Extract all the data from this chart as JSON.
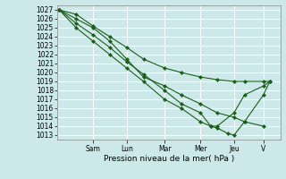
{
  "xlabel": "Pression niveau de la mer( hPa )",
  "bg_color": "#cde8e8",
  "grid_color": "#ffffff",
  "line_color": "#1a5e1a",
  "marker_color": "#1a5e1a",
  "ylim": [
    1012.5,
    1027.5
  ],
  "yticks": [
    1013,
    1014,
    1015,
    1016,
    1017,
    1018,
    1019,
    1020,
    1021,
    1022,
    1023,
    1024,
    1025,
    1026,
    1027
  ],
  "day_labels": [
    "Sam",
    "Lun",
    "Mar",
    "Mer",
    "Jeu",
    "V"
  ],
  "day_x": [
    0.16,
    0.32,
    0.5,
    0.67,
    0.83,
    0.97
  ],
  "lines": [
    {
      "x": [
        0.0,
        0.08,
        0.16,
        0.24,
        0.32,
        0.4,
        0.5,
        0.58,
        0.67,
        0.75,
        0.83,
        0.88,
        0.97,
        1.0
      ],
      "y": [
        1027.0,
        1026.5,
        1025.2,
        1024.0,
        1022.8,
        1021.5,
        1020.5,
        1020.0,
        1019.5,
        1019.2,
        1019.0,
        1019.0,
        1019.0,
        1019.0
      ]
    },
    {
      "x": [
        0.0,
        0.08,
        0.16,
        0.24,
        0.32,
        0.4,
        0.5,
        0.58,
        0.67,
        0.75,
        0.83,
        0.88,
        0.97
      ],
      "y": [
        1027.0,
        1026.0,
        1025.0,
        1023.5,
        1021.5,
        1019.5,
        1018.5,
        1017.5,
        1016.5,
        1015.5,
        1015.0,
        1014.5,
        1014.0
      ]
    },
    {
      "x": [
        0.0,
        0.08,
        0.16,
        0.24,
        0.32,
        0.4,
        0.5,
        0.58,
        0.67,
        0.72,
        0.75,
        0.8,
        0.83,
        0.88,
        0.97,
        1.0
      ],
      "y": [
        1027.0,
        1025.5,
        1024.2,
        1022.8,
        1021.2,
        1019.8,
        1018.0,
        1016.5,
        1015.5,
        1014.0,
        1013.8,
        1013.2,
        1013.0,
        1014.5,
        1017.5,
        1019.0
      ]
    },
    {
      "x": [
        0.0,
        0.08,
        0.16,
        0.24,
        0.32,
        0.4,
        0.5,
        0.58,
        0.67,
        0.72,
        0.75,
        0.83,
        0.88,
        0.97,
        1.0
      ],
      "y": [
        1027.0,
        1025.0,
        1023.5,
        1022.0,
        1020.5,
        1019.0,
        1017.0,
        1016.0,
        1014.5,
        1014.0,
        1014.0,
        1015.5,
        1017.5,
        1018.5,
        1019.0
      ]
    }
  ],
  "xlabel_fontsize": 6.5,
  "tick_fontsize": 5.5
}
